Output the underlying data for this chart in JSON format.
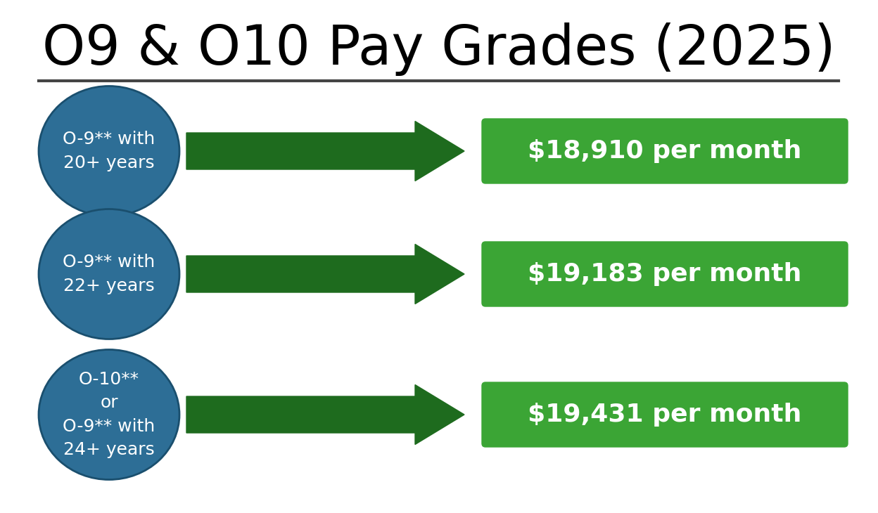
{
  "title": "O9 & O10 Pay Grades (2025)",
  "background_color": "#ffffff",
  "title_fontsize": 56,
  "title_color": "#000000",
  "rows": [
    {
      "circle_text": "O-9** with\n20+ years",
      "pay_text": "$18,910 per month",
      "circle_lines": 2
    },
    {
      "circle_text": "O-9** with\n22+ years",
      "pay_text": "$19,183 per month",
      "circle_lines": 2
    },
    {
      "circle_text": "O-10**\nor\nO-9** with\n24+ years",
      "pay_text": "$19,431 per month",
      "circle_lines": 4
    }
  ],
  "circle_color": "#2d6e96",
  "circle_edge_color": "#1a4f6e",
  "arrow_color": "#1e6b1e",
  "box_color": "#3ba535",
  "circle_text_color": "#ffffff",
  "pay_text_color": "#ffffff",
  "circle_text_fontsize": 18,
  "pay_text_fontsize": 26,
  "underline_color": "#444444",
  "underline_lw": 3.0
}
